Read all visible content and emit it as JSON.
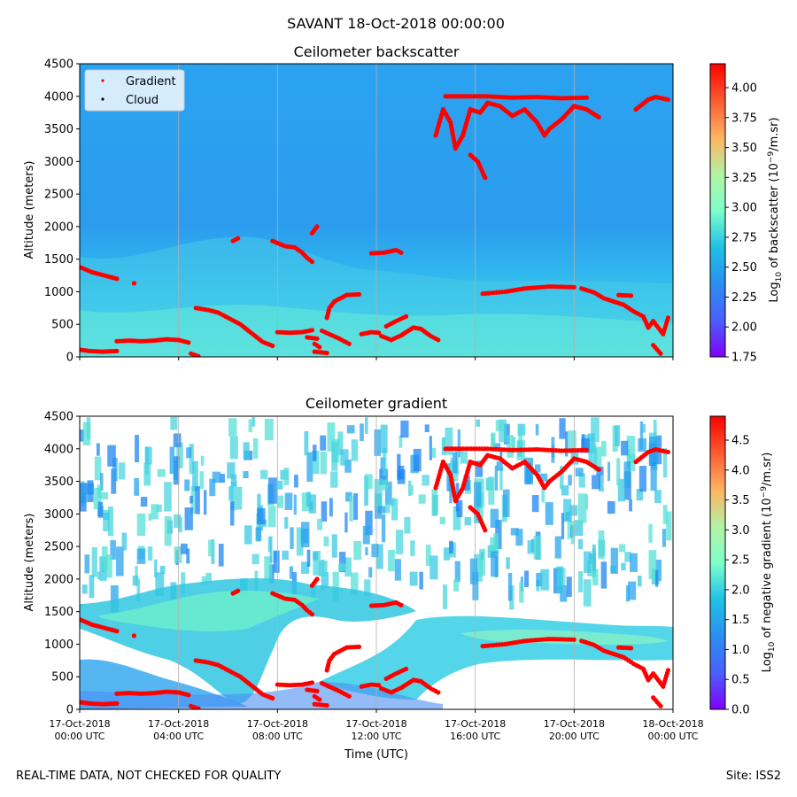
{
  "figure": {
    "suptitle": "SAVANT 18-Oct-2018 00:00:00",
    "footer_left": "REAL-TIME DATA, NOT CHECKED FOR QUALITY",
    "footer_right": "Site: ISS2"
  },
  "chart_data": [
    {
      "type": "heatmap",
      "title": "Ceilometer backscatter",
      "ylabel": "Altitude (meters)",
      "xlabel": "",
      "xlim_hours": [
        0,
        24
      ],
      "ylim": [
        0,
        4500
      ],
      "yticks": [
        0,
        500,
        1000,
        1500,
        2000,
        2500,
        3000,
        3500,
        4000,
        4500
      ],
      "grid": "vertical lines at x ticks",
      "legend": {
        "placement": "upper-left",
        "entries": [
          {
            "label": "Gradient",
            "color": "#ff0000",
            "marker": "dot"
          },
          {
            "label": "Cloud",
            "color": "#000000",
            "marker": "dot"
          }
        ]
      },
      "colorbar": {
        "label": "Log$_{10}$ of backscatter (10$^{-9}$/m.sr)",
        "label_main": "Log",
        "label_sub": "10",
        "label_mid": " of backscatter (10",
        "label_sup": "−9",
        "label_end": "/m.sr)",
        "range": [
          1.75,
          4.2
        ],
        "ticks": [
          "1.75",
          "2.00",
          "2.25",
          "2.50",
          "2.75",
          "3.00",
          "3.25",
          "3.50",
          "3.75",
          "4.00"
        ],
        "colormap": "rainbow"
      }
    },
    {
      "type": "heatmap",
      "title": "Ceilometer gradient",
      "ylabel": "Altitude (meters)",
      "xlabel": "Time (UTC)",
      "xlim_hours": [
        0,
        24
      ],
      "ylim": [
        0,
        4500
      ],
      "yticks": [
        0,
        500,
        1000,
        1500,
        2000,
        2500,
        3000,
        3500,
        4000,
        4500
      ],
      "grid": "vertical lines at x ticks",
      "colorbar": {
        "label": "Log$_{10}$ of negative gradient (10$^{-9}$/m.sr)",
        "label_main": "Log",
        "label_sub": "10",
        "label_mid": " of negative gradient (10",
        "label_sup": "−9",
        "label_end": "/m.sr)",
        "range": [
          0,
          4.9
        ],
        "ticks": [
          "0.0",
          "0.5",
          "1.0",
          "1.5",
          "2.0",
          "2.5",
          "3.0",
          "3.5",
          "4.0",
          "4.5"
        ],
        "colormap": "rainbow"
      }
    }
  ],
  "x_axis": {
    "tick_hours": [
      0,
      4,
      8,
      12,
      16,
      20,
      24
    ],
    "tick_date": [
      "17-Oct-2018",
      "17-Oct-2018",
      "17-Oct-2018",
      "17-Oct-2018",
      "17-Oct-2018",
      "17-Oct-2018",
      "18-Oct-2018"
    ],
    "tick_time": [
      "00:00 UTC",
      "04:00 UTC",
      "08:00 UTC",
      "12:00 UTC",
      "16:00 UTC",
      "20:00 UTC",
      "00:00 UTC"
    ]
  },
  "gradient_points": {
    "note": "Estimated (hour, altitude m) traces of red Gradient markers, same in both panels",
    "segments": [
      [
        [
          0.0,
          110
        ],
        [
          0.4,
          90
        ],
        [
          0.9,
          80
        ],
        [
          1.5,
          90
        ]
      ],
      [
        [
          0.0,
          1380
        ],
        [
          0.5,
          1300
        ],
        [
          1.0,
          1250
        ],
        [
          1.5,
          1200
        ]
      ],
      [
        [
          2.2,
          1130
        ]
      ],
      [
        [
          1.5,
          240
        ],
        [
          2.0,
          250
        ],
        [
          2.5,
          240
        ],
        [
          3.0,
          250
        ],
        [
          3.5,
          270
        ],
        [
          4.0,
          260
        ],
        [
          4.4,
          220
        ]
      ],
      [
        [
          4.5,
          50
        ],
        [
          4.8,
          10
        ]
      ],
      [
        [
          4.7,
          750
        ],
        [
          5.2,
          720
        ],
        [
          5.6,
          680
        ],
        [
          6.0,
          600
        ],
        [
          6.5,
          500
        ],
        [
          7.0,
          350
        ],
        [
          7.4,
          230
        ],
        [
          7.8,
          170
        ]
      ],
      [
        [
          6.2,
          1780
        ],
        [
          6.4,
          1820
        ]
      ],
      [
        [
          7.8,
          1780
        ],
        [
          8.3,
          1700
        ],
        [
          8.7,
          1680
        ],
        [
          9.0,
          1600
        ],
        [
          9.2,
          1520
        ],
        [
          9.4,
          1460
        ]
      ],
      [
        [
          8.0,
          380
        ],
        [
          8.5,
          370
        ],
        [
          9.0,
          380
        ],
        [
          9.4,
          410
        ]
      ],
      [
        [
          9.2,
          300
        ],
        [
          9.6,
          280
        ]
      ],
      [
        [
          9.4,
          1900
        ],
        [
          9.6,
          2000
        ]
      ],
      [
        [
          9.5,
          200
        ],
        [
          9.7,
          150
        ]
      ],
      [
        [
          9.5,
          80
        ],
        [
          10.0,
          60
        ]
      ],
      [
        [
          9.8,
          400
        ],
        [
          10.5,
          280
        ],
        [
          10.9,
          200
        ]
      ],
      [
        [
          10.0,
          600
        ],
        [
          10.1,
          750
        ],
        [
          10.3,
          850
        ],
        [
          10.8,
          950
        ],
        [
          11.3,
          960
        ]
      ],
      [
        [
          11.4,
          350
        ],
        [
          11.8,
          380
        ],
        [
          12.1,
          370
        ]
      ],
      [
        [
          11.8,
          1590
        ],
        [
          12.3,
          1600
        ],
        [
          12.8,
          1640
        ],
        [
          13.0,
          1600
        ]
      ],
      [
        [
          12.2,
          320
        ],
        [
          12.6,
          260
        ],
        [
          13.0,
          330
        ],
        [
          13.5,
          450
        ],
        [
          13.8,
          430
        ],
        [
          14.2,
          320
        ],
        [
          14.5,
          260
        ]
      ],
      [
        [
          12.4,
          470
        ],
        [
          12.8,
          550
        ],
        [
          13.2,
          620
        ]
      ],
      [
        [
          14.4,
          3400
        ],
        [
          14.7,
          3800
        ],
        [
          15.0,
          3600
        ],
        [
          15.2,
          3200
        ],
        [
          15.5,
          3400
        ],
        [
          15.8,
          3800
        ],
        [
          16.2,
          3750
        ],
        [
          16.5,
          3900
        ],
        [
          17.0,
          3850
        ],
        [
          17.5,
          3700
        ],
        [
          18.0,
          3800
        ],
        [
          18.5,
          3600
        ],
        [
          18.8,
          3400
        ],
        [
          19.0,
          3500
        ],
        [
          19.5,
          3650
        ],
        [
          20.0,
          3850
        ],
        [
          20.5,
          3800
        ],
        [
          21.0,
          3680
        ]
      ],
      [
        [
          14.8,
          4000
        ],
        [
          15.5,
          4000
        ],
        [
          16.5,
          4000
        ],
        [
          17.5,
          3980
        ],
        [
          18.5,
          3990
        ],
        [
          19.5,
          3970
        ],
        [
          20.5,
          3980
        ]
      ],
      [
        [
          15.8,
          3100
        ],
        [
          16.1,
          3000
        ],
        [
          16.4,
          2750
        ]
      ],
      [
        [
          16.3,
          970
        ],
        [
          17.2,
          1000
        ],
        [
          18.0,
          1050
        ],
        [
          19.0,
          1080
        ],
        [
          20.0,
          1070
        ]
      ],
      [
        [
          20.3,
          1050
        ],
        [
          20.8,
          990
        ],
        [
          21.2,
          900
        ],
        [
          21.6,
          850
        ],
        [
          22.0,
          800
        ],
        [
          22.4,
          700
        ],
        [
          22.8,
          620
        ],
        [
          23.0,
          450
        ],
        [
          23.2,
          550
        ],
        [
          23.6,
          350
        ],
        [
          23.8,
          600
        ]
      ],
      [
        [
          21.8,
          950
        ],
        [
          22.3,
          940
        ]
      ],
      [
        [
          22.5,
          3800
        ],
        [
          23.0,
          3950
        ],
        [
          23.3,
          3990
        ],
        [
          23.8,
          3950
        ]
      ],
      [
        [
          23.2,
          180
        ],
        [
          23.5,
          50
        ]
      ]
    ]
  }
}
